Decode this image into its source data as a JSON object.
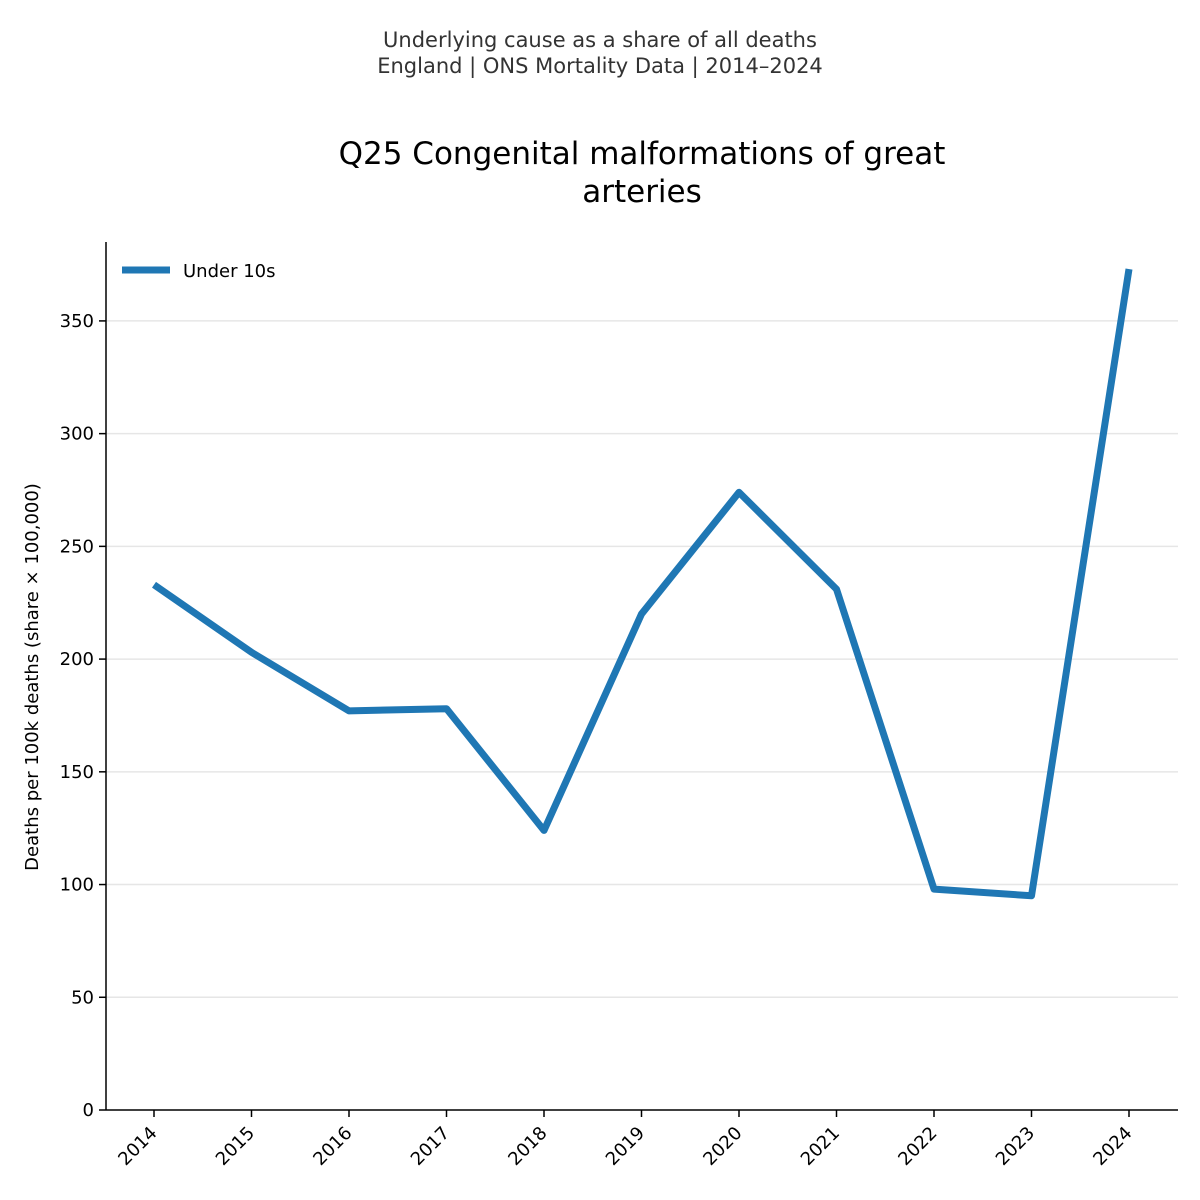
{
  "colors": {
    "series": "#1f77b4",
    "grid": "#e6e6e6",
    "axis": "#000000",
    "suptitle": "#333333"
  },
  "chart_data": {
    "type": "line",
    "suptitle_line1": "Underlying cause as a share of all deaths",
    "suptitle_line2": "England | ONS Mortality Data | 2014–2024",
    "title_line1": "Q25 Congenital malformations of great",
    "title_line2": "arteries",
    "ylabel": "Deaths per 100k deaths (share × 100,000)",
    "xlabel": "",
    "ylim": [
      0,
      385
    ],
    "yticks": [
      0,
      50,
      100,
      150,
      200,
      250,
      300,
      350
    ],
    "grid": true,
    "legend_position": "top-left",
    "categories": [
      "2014",
      "2015",
      "2016",
      "2017",
      "2018",
      "2019",
      "2020",
      "2021",
      "2022",
      "2023",
      "2024"
    ],
    "series": [
      {
        "name": "Under 10s",
        "values": [
          233,
          203,
          177,
          178,
          124,
          220,
          274,
          231,
          98,
          95,
          373
        ]
      }
    ]
  }
}
